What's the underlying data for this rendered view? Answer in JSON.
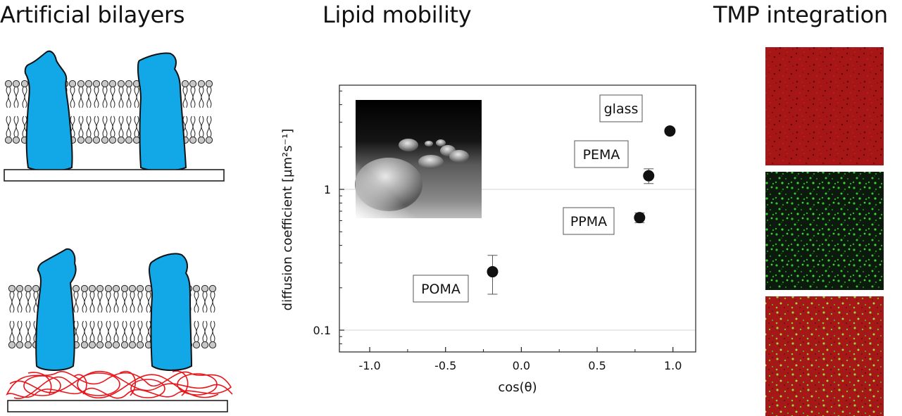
{
  "panels": {
    "left_title": "Artificial bilayers",
    "middle_title": "Lipid mobility",
    "right_title": "TMP integration"
  },
  "colors": {
    "protein": "#12a8e8",
    "polymer": "#e8151b",
    "lipid_head": "#c8c8c8",
    "micrograph_red": "#a81616",
    "micrograph_green": "#30c22c",
    "micrograph_merge_green": "#9ad23a"
  },
  "chart_data": {
    "type": "scatter",
    "xlabel": "cos(θ)",
    "ylabel": "diffusion coefficient [µm²s⁻¹]",
    "y_scale": "log",
    "xlim": [
      -1.2,
      1.15
    ],
    "ylim": [
      0.07,
      5.5
    ],
    "x_ticks": [
      -1.0,
      -0.5,
      0.0,
      0.5,
      1.0
    ],
    "x_tick_labels": [
      "-1.0",
      "-0.5",
      "0.0",
      "0.5",
      "1.0"
    ],
    "y_ticks": [
      0.1,
      1
    ],
    "y_tick_labels": [
      "0.1",
      "1"
    ],
    "grid": "horizontal at 0.1 and 1",
    "points": [
      {
        "label": "POMA",
        "x": -0.19,
        "y": 0.26,
        "err_low": 0.18,
        "err_high": 0.34
      },
      {
        "label": "PPMA",
        "x": 0.78,
        "y": 0.63,
        "err_low": 0.58,
        "err_high": 0.68
      },
      {
        "label": "PEMA",
        "x": 0.84,
        "y": 1.25,
        "err_low": 1.1,
        "err_high": 1.4
      },
      {
        "label": "glass",
        "x": 0.98,
        "y": 2.6,
        "err_low": 2.6,
        "err_high": 2.6
      }
    ]
  }
}
